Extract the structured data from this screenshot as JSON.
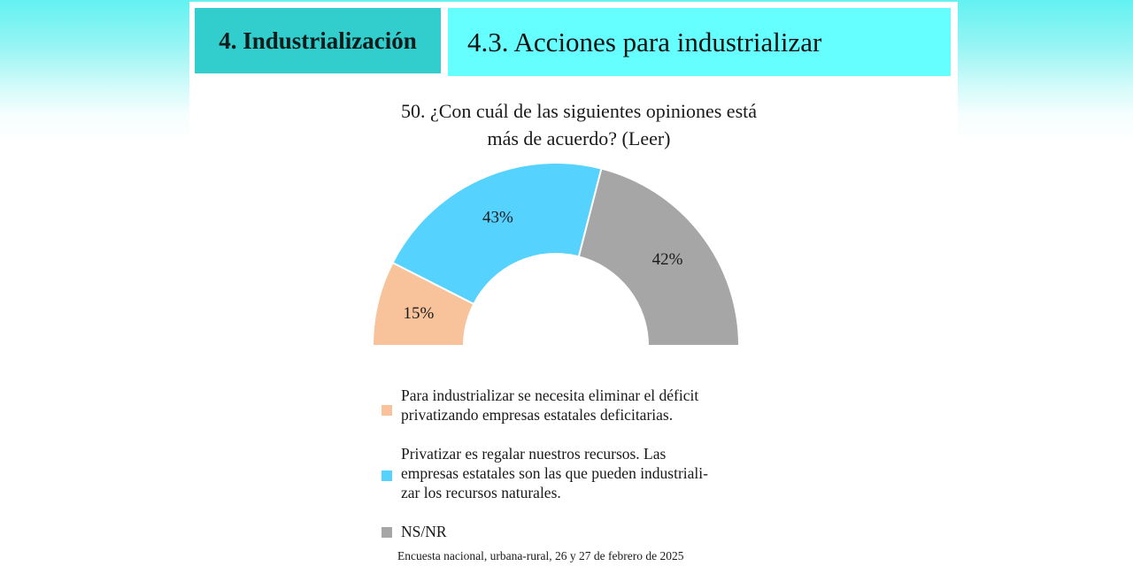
{
  "header": {
    "section": "4. Industrialización",
    "subsection": "4.3. Acciones para industrializar"
  },
  "question": "50. ¿Con cuál de las siguientes opiniones está\nmás de acuerdo? (Leer)",
  "footnote": "Encuesta nacional, urbana-rural, 26 y 27 de febrero de 2025",
  "chart_data": {
    "type": "pie",
    "subtype": "half-donut",
    "title": "50. ¿Con cuál de las siguientes opiniones está más de acuerdo? (Leer)",
    "categories": [
      "Para industrializar se necesita eliminar el déficit privatizando empresas estatales deficitarias.",
      "Privatizar es regalar nuestros recursos. Las empresas estatales son las que pueden industrializar los recursos naturales.",
      "NS/NR"
    ],
    "values": [
      15,
      43,
      42
    ],
    "labels": [
      "15%",
      "43%",
      "42%"
    ],
    "colors": [
      "#f8c39a",
      "#56d2ff",
      "#a6a6a6"
    ],
    "legend_placement": "bottom",
    "legend": [
      {
        "lines": [
          "Para industrializar se necesita eliminar el déficit",
          "privatizando empresas estatales deficitarias."
        ],
        "color": "#f8c39a"
      },
      {
        "lines": [
          "Privatizar es regalar nuestros recursos. Las",
          "empresas estatales son las que pueden industriali-",
          "zar los recursos naturales."
        ],
        "color": "#56d2ff"
      },
      {
        "lines": [
          "NS/NR"
        ],
        "color": "#a6a6a6"
      }
    ]
  }
}
